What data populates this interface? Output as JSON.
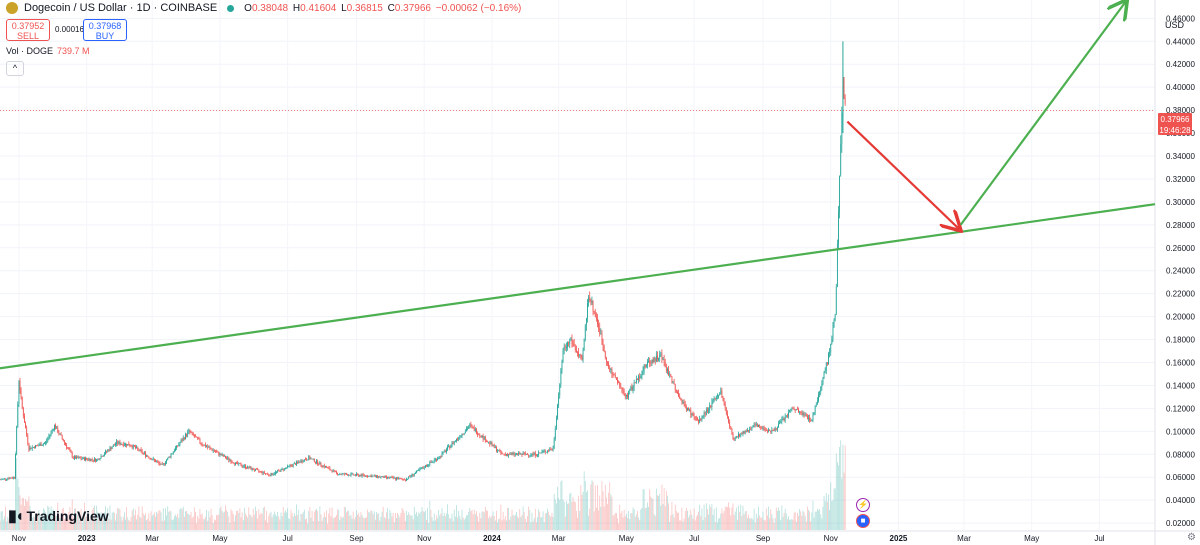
{
  "header": {
    "title": "Dogecoin / US Dollar · 1D · COINBASE",
    "ohlc": {
      "o_label": "O",
      "o": "0.38048",
      "h_label": "H",
      "h": "0.41604",
      "l_label": "L",
      "l": "0.36815",
      "c_label": "C",
      "c": "0.37966",
      "change": "−0.00062 (−0.16%)"
    }
  },
  "trade": {
    "sell_price": "0.37952",
    "sell_label": "SELL",
    "spread": "0.00016",
    "buy_price": "0.37968",
    "buy_label": "BUY"
  },
  "volume": {
    "label": "Vol · DOGE",
    "value": "739.7 M"
  },
  "currency": "USD",
  "brand": "TradingView",
  "price_tag": {
    "price": "0.37966",
    "time": "19:46:28"
  },
  "colors": {
    "up": "#26a69a",
    "down": "#ef5350",
    "trendline": "#4caf50",
    "arrow_down": "#e53935"
  },
  "icons": [
    "tradingview-logo-icon",
    "dogecoin-icon",
    "collapse-icon",
    "settings-icon",
    "lightning-icon",
    "us-flag-icon"
  ],
  "chart_data": {
    "type": "candlestick",
    "series_name": "Dogecoin / US Dollar",
    "x_ticks": [
      "Nov",
      "2023",
      "Mar",
      "May",
      "Jul",
      "Sep",
      "Nov",
      "2024",
      "Mar",
      "May",
      "Jul",
      "Sep",
      "Nov",
      "2025",
      "Mar",
      "May",
      "Jul"
    ],
    "y_ticks": [
      "0.46000",
      "0.44000",
      "0.42000",
      "0.40000",
      "0.38000",
      "0.36000",
      "0.34000",
      "0.32000",
      "0.30000",
      "0.28000",
      "0.26000",
      "0.24000",
      "0.22000",
      "0.20000",
      "0.18000",
      "0.16000",
      "0.14000",
      "0.12000",
      "0.10000",
      "0.08000",
      "0.06000",
      "0.04000",
      "0.02000"
    ],
    "ylim": [
      0.014,
      0.476
    ],
    "xlim": [
      "2022-10-15",
      "2025-08-20"
    ],
    "price_path": [
      [
        "2022-10-15",
        0.058
      ],
      [
        "2022-10-28",
        0.06
      ],
      [
        "2022-11-01",
        0.145
      ],
      [
        "2022-11-04",
        0.12
      ],
      [
        "2022-11-10",
        0.085
      ],
      [
        "2022-11-25",
        0.09
      ],
      [
        "2022-12-03",
        0.105
      ],
      [
        "2022-12-20",
        0.077
      ],
      [
        "2023-01-10",
        0.075
      ],
      [
        "2023-01-28",
        0.09
      ],
      [
        "2023-02-10",
        0.088
      ],
      [
        "2023-03-10",
        0.07
      ],
      [
        "2023-04-03",
        0.1
      ],
      [
        "2023-04-15",
        0.089
      ],
      [
        "2023-05-15",
        0.072
      ],
      [
        "2023-06-15",
        0.062
      ],
      [
        "2023-07-20",
        0.077
      ],
      [
        "2023-08-15",
        0.063
      ],
      [
        "2023-09-15",
        0.061
      ],
      [
        "2023-10-15",
        0.058
      ],
      [
        "2023-11-15",
        0.078
      ],
      [
        "2023-12-12",
        0.105
      ],
      [
        "2024-01-10",
        0.08
      ],
      [
        "2024-02-10",
        0.08
      ],
      [
        "2024-02-25",
        0.085
      ],
      [
        "2024-03-05",
        0.17
      ],
      [
        "2024-03-12",
        0.18
      ],
      [
        "2024-03-22",
        0.16
      ],
      [
        "2024-03-28",
        0.22
      ],
      [
        "2024-04-05",
        0.195
      ],
      [
        "2024-04-15",
        0.155
      ],
      [
        "2024-05-01",
        0.13
      ],
      [
        "2024-05-20",
        0.16
      ],
      [
        "2024-06-01",
        0.166
      ],
      [
        "2024-06-20",
        0.125
      ],
      [
        "2024-07-05",
        0.108
      ],
      [
        "2024-07-25",
        0.135
      ],
      [
        "2024-08-05",
        0.094
      ],
      [
        "2024-08-25",
        0.105
      ],
      [
        "2024-09-10",
        0.1
      ],
      [
        "2024-09-28",
        0.12
      ],
      [
        "2024-10-15",
        0.11
      ],
      [
        "2024-10-30",
        0.165
      ],
      [
        "2024-11-05",
        0.2
      ],
      [
        "2024-11-12",
        0.41
      ],
      [
        "2024-11-14",
        0.3796
      ]
    ],
    "price_extremes": {
      "all_time_high_label": "0.44000"
    },
    "last_price": 0.37966,
    "annotations": [
      {
        "type": "trendline",
        "color": "green",
        "from": [
          "2022-10-15",
          0.155
        ],
        "to": [
          "2025-08-20",
          0.298
        ]
      },
      {
        "type": "arrow",
        "color": "red",
        "from": [
          "2024-11-16",
          0.37
        ],
        "to": [
          "2025-02-25",
          0.276
        ]
      },
      {
        "type": "arrow",
        "color": "green",
        "from": [
          "2025-02-26",
          0.28
        ],
        "to": [
          "2025-07-25",
          0.475
        ]
      }
    ]
  }
}
